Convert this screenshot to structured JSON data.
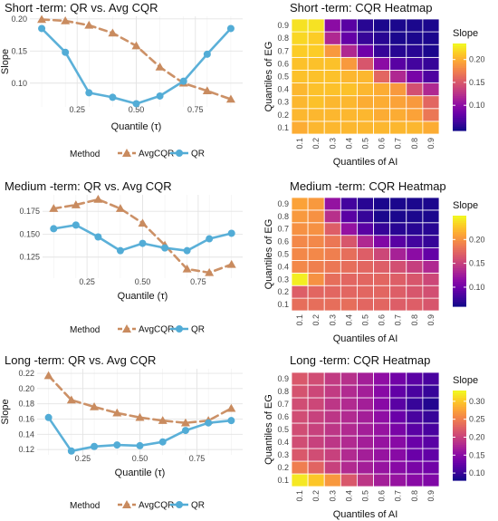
{
  "chart_data": [
    {
      "type": "line",
      "title": "Short -term: QR vs. Avg CQR",
      "xlabel": "Quantile (τ)",
      "ylabel": "Slope",
      "xlim": [
        0.05,
        0.95
      ],
      "ylim": [
        0.063,
        0.204
      ],
      "x": [
        0.1,
        0.2,
        0.3,
        0.4,
        0.5,
        0.6,
        0.7,
        0.8,
        0.9
      ],
      "xticks": [
        0.25,
        0.5,
        0.75
      ],
      "xtick_labels": [
        "0.25",
        "0.50",
        "0.75"
      ],
      "yticks": [
        0.1,
        0.15,
        0.2
      ],
      "ytick_labels": [
        "0.10",
        "0.15",
        "0.20"
      ],
      "series": [
        {
          "name": "AvgCQR",
          "marker": "triangle",
          "linestyle": "dashed",
          "color": "#c98b5f",
          "values": [
            0.199,
            0.197,
            0.19,
            0.178,
            0.158,
            0.125,
            0.1,
            0.088,
            0.075
          ]
        },
        {
          "name": "QR",
          "marker": "circle",
          "linestyle": "solid",
          "color": "#52acd6",
          "values": [
            0.185,
            0.148,
            0.085,
            0.078,
            0.068,
            0.08,
            0.103,
            0.145,
            0.185
          ]
        }
      ],
      "legend": {
        "title": "Method",
        "placement": "bottom"
      }
    },
    {
      "type": "heatmap",
      "title": "Short -term: CQR Heatmap",
      "xlabel": "Quantiles of AI",
      "ylabel": "Quantiles of EG",
      "x": [
        0.1,
        0.2,
        0.3,
        0.4,
        0.5,
        0.6,
        0.7,
        0.8,
        0.9
      ],
      "y": [
        0.1,
        0.2,
        0.3,
        0.4,
        0.5,
        0.6,
        0.7,
        0.8,
        0.9
      ],
      "xtick_labels": [
        "0.1",
        "0.2",
        "0.3",
        "0.4",
        "0.5",
        "0.6",
        "0.7",
        "0.8",
        "0.9"
      ],
      "ytick_labels": [
        "0.1",
        "0.2",
        "0.3",
        "0.4",
        "0.5",
        "0.6",
        "0.7",
        "0.8",
        "0.9"
      ],
      "values_note": "rows ordered from EG 0.1 (bottom) to EG 0.9 (top)",
      "values": [
        [
          0.2,
          0.205,
          0.205,
          0.205,
          0.205,
          0.205,
          0.205,
          0.205,
          0.2
        ],
        [
          0.205,
          0.205,
          0.205,
          0.205,
          0.205,
          0.2,
          0.2,
          0.195,
          0.17
        ],
        [
          0.205,
          0.21,
          0.205,
          0.205,
          0.2,
          0.2,
          0.195,
          0.19,
          0.16
        ],
        [
          0.205,
          0.21,
          0.21,
          0.21,
          0.205,
          0.2,
          0.19,
          0.145,
          0.12
        ],
        [
          0.21,
          0.21,
          0.21,
          0.205,
          0.205,
          0.16,
          0.12,
          0.09,
          0.07
        ],
        [
          0.21,
          0.21,
          0.21,
          0.19,
          0.15,
          0.1,
          0.075,
          0.065,
          0.06
        ],
        [
          0.215,
          0.215,
          0.19,
          0.12,
          0.085,
          0.06,
          0.055,
          0.055,
          0.05
        ],
        [
          0.22,
          0.215,
          0.12,
          0.08,
          0.06,
          0.055,
          0.05,
          0.05,
          0.05
        ],
        [
          0.225,
          0.225,
          0.1,
          0.075,
          0.055,
          0.05,
          0.05,
          0.05,
          0.05
        ]
      ],
      "colorbar": {
        "title": "Slope",
        "min": 0.045,
        "max": 0.235,
        "ticks": [
          0.1,
          0.15,
          0.2
        ],
        "tick_labels": [
          "0.10",
          "0.15",
          "0.20"
        ]
      }
    },
    {
      "type": "line",
      "title": "Medium -term: QR vs. Avg CQR",
      "xlabel": "Quantile (τ)",
      "ylabel": "",
      "xlim": [
        0.05,
        0.95
      ],
      "ylim": [
        0.102,
        0.193
      ],
      "x": [
        0.1,
        0.2,
        0.3,
        0.4,
        0.5,
        0.6,
        0.7,
        0.8,
        0.9
      ],
      "xticks": [
        0.25,
        0.5,
        0.75
      ],
      "xtick_labels": [
        "0.25",
        "0.50",
        "0.75"
      ],
      "yticks": [
        0.125,
        0.15,
        0.175
      ],
      "ytick_labels": [
        "0.125",
        "0.150",
        "0.175"
      ],
      "series": [
        {
          "name": "AvgCQR",
          "marker": "triangle",
          "linestyle": "dashed",
          "color": "#c98b5f",
          "values": [
            0.178,
            0.182,
            0.188,
            0.178,
            0.162,
            0.138,
            0.112,
            0.108,
            0.117
          ]
        },
        {
          "name": "QR",
          "marker": "circle",
          "linestyle": "solid",
          "color": "#52acd6",
          "values": [
            0.156,
            0.16,
            0.147,
            0.132,
            0.14,
            0.135,
            0.132,
            0.145,
            0.151
          ]
        }
      ],
      "legend": {
        "title": "Method",
        "placement": "bottom"
      }
    },
    {
      "type": "heatmap",
      "title": "Medium -term: CQR Heatmap",
      "xlabel": "Quantiles of AI",
      "ylabel": "Quantiles of EG",
      "x": [
        0.1,
        0.2,
        0.3,
        0.4,
        0.5,
        0.6,
        0.7,
        0.8,
        0.9
      ],
      "y": [
        0.1,
        0.2,
        0.3,
        0.4,
        0.5,
        0.6,
        0.7,
        0.8,
        0.9
      ],
      "xtick_labels": [
        "0.1",
        "0.2",
        "0.3",
        "0.4",
        "0.5",
        "0.6",
        "0.7",
        "0.8",
        "0.9"
      ],
      "ytick_labels": [
        "0.1",
        "0.2",
        "0.3",
        "0.4",
        "0.5",
        "0.6",
        "0.7",
        "0.8",
        "0.9"
      ],
      "values_note": "rows ordered from EG 0.1 (bottom) to EG 0.9 (top)",
      "values": [
        [
          0.18,
          0.18,
          0.18,
          0.18,
          0.175,
          0.175,
          0.17,
          0.17,
          0.165
        ],
        [
          0.17,
          0.175,
          0.175,
          0.175,
          0.175,
          0.175,
          0.17,
          0.165,
          0.16
        ],
        [
          0.245,
          0.2,
          0.18,
          0.175,
          0.175,
          0.175,
          0.17,
          0.165,
          0.155
        ],
        [
          0.195,
          0.19,
          0.185,
          0.18,
          0.175,
          0.17,
          0.16,
          0.15,
          0.135
        ],
        [
          0.195,
          0.195,
          0.19,
          0.18,
          0.17,
          0.155,
          0.13,
          0.115,
          0.095
        ],
        [
          0.195,
          0.195,
          0.185,
          0.165,
          0.135,
          0.11,
          0.09,
          0.08,
          0.075
        ],
        [
          0.2,
          0.2,
          0.17,
          0.12,
          0.09,
          0.075,
          0.07,
          0.07,
          0.07
        ],
        [
          0.205,
          0.2,
          0.14,
          0.09,
          0.075,
          0.065,
          0.065,
          0.065,
          0.065
        ],
        [
          0.21,
          0.205,
          0.12,
          0.08,
          0.07,
          0.065,
          0.065,
          0.065,
          0.065
        ]
      ],
      "colorbar": {
        "title": "Slope",
        "min": 0.06,
        "max": 0.25,
        "ticks": [
          0.1,
          0.15,
          0.2
        ],
        "tick_labels": [
          "0.10",
          "0.15",
          "0.20"
        ]
      }
    },
    {
      "type": "line",
      "title": "Long -term: QR vs. Avg CQR",
      "xlabel": "Quantile (τ)",
      "ylabel": "Slope",
      "xlim": [
        0.05,
        0.95
      ],
      "ylim": [
        0.113,
        0.226
      ],
      "x": [
        0.1,
        0.2,
        0.3,
        0.4,
        0.5,
        0.6,
        0.7,
        0.8,
        0.9
      ],
      "xticks": [
        0.25,
        0.5,
        0.75
      ],
      "xtick_labels": [
        "0.25",
        "0.50",
        "0.75"
      ],
      "yticks": [
        0.12,
        0.14,
        0.16,
        0.18,
        0.2,
        0.22
      ],
      "ytick_labels": [
        "0.12",
        "0.14",
        "0.16",
        "0.18",
        "0.20",
        "0.22"
      ],
      "series": [
        {
          "name": "AvgCQR",
          "marker": "triangle",
          "linestyle": "dashed",
          "color": "#c98b5f",
          "values": [
            0.217,
            0.185,
            0.176,
            0.168,
            0.162,
            0.158,
            0.155,
            0.158,
            0.174
          ]
        },
        {
          "name": "QR",
          "marker": "circle",
          "linestyle": "solid",
          "color": "#52acd6",
          "values": [
            0.162,
            0.118,
            0.124,
            0.126,
            0.125,
            0.13,
            0.145,
            0.155,
            0.158
          ]
        }
      ],
      "legend": {
        "title": "Method",
        "placement": "bottom"
      }
    },
    {
      "type": "heatmap",
      "title": "Long -term: CQR Heatmap",
      "xlabel": "Quantiles of AI",
      "ylabel": "Quantiles of EG",
      "x": [
        0.1,
        0.2,
        0.3,
        0.4,
        0.5,
        0.6,
        0.7,
        0.8,
        0.9
      ],
      "y": [
        0.1,
        0.2,
        0.3,
        0.4,
        0.5,
        0.6,
        0.7,
        0.8,
        0.9
      ],
      "xtick_labels": [
        "0.1",
        "0.2",
        "0.3",
        "0.4",
        "0.5",
        "0.6",
        "0.7",
        "0.8",
        "0.9"
      ],
      "ytick_labels": [
        "0.1",
        "0.2",
        "0.3",
        "0.4",
        "0.5",
        "0.6",
        "0.7",
        "0.8",
        "0.9"
      ],
      "values_note": "rows ordered from EG 0.1 (bottom) to EG 0.9 (top)",
      "values": [
        [
          0.32,
          0.3,
          0.27,
          0.22,
          0.19,
          0.17,
          0.16,
          0.15,
          0.145
        ],
        [
          0.25,
          0.23,
          0.2,
          0.18,
          0.17,
          0.16,
          0.15,
          0.14,
          0.135
        ],
        [
          0.22,
          0.21,
          0.2,
          0.18,
          0.17,
          0.16,
          0.15,
          0.13,
          0.125
        ],
        [
          0.21,
          0.2,
          0.19,
          0.18,
          0.17,
          0.16,
          0.15,
          0.13,
          0.12
        ],
        [
          0.21,
          0.2,
          0.19,
          0.18,
          0.17,
          0.16,
          0.14,
          0.12,
          0.11
        ],
        [
          0.21,
          0.2,
          0.19,
          0.18,
          0.17,
          0.155,
          0.13,
          0.11,
          0.1
        ],
        [
          0.21,
          0.205,
          0.19,
          0.18,
          0.17,
          0.15,
          0.12,
          0.1,
          0.09
        ],
        [
          0.215,
          0.205,
          0.195,
          0.18,
          0.17,
          0.15,
          0.125,
          0.11,
          0.1
        ],
        [
          0.22,
          0.21,
          0.195,
          0.185,
          0.17,
          0.155,
          0.135,
          0.12,
          0.11
        ]
      ],
      "colorbar": {
        "title": "Slope",
        "min": 0.08,
        "max": 0.33,
        "ticks": [
          0.1,
          0.15,
          0.2,
          0.25,
          0.3
        ],
        "tick_labels": [
          "0.10",
          "0.15",
          "0.20",
          "0.25",
          "0.30"
        ]
      }
    }
  ]
}
